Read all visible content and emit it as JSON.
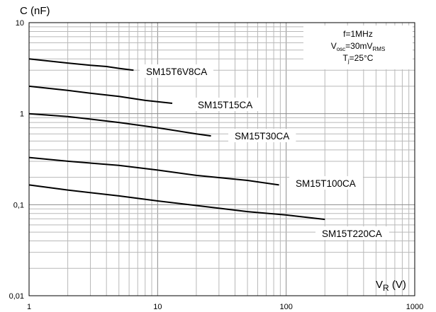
{
  "chart_data": {
    "type": "line",
    "xscale": "log",
    "yscale": "log",
    "xlim": [
      1,
      1000
    ],
    "ylim": [
      0.01,
      10
    ],
    "grid": true,
    "xlabel": "V_R (V)",
    "ylabel": "C (nF)",
    "x_tick_labels": [
      "1",
      "10",
      "100",
      "1000"
    ],
    "y_tick_labels": [
      "0,01",
      "0,1",
      "1",
      "10"
    ],
    "conditions": {
      "line1": "f=1MHz",
      "line2": "Vosc=30mVRMS",
      "line3": "Tj=25°C"
    },
    "series": [
      {
        "name": "SM15T6V8CA",
        "x": [
          1,
          2,
          3,
          4,
          5,
          6.5
        ],
        "y": [
          4.0,
          3.6,
          3.4,
          3.3,
          3.15,
          3.0
        ]
      },
      {
        "name": "SM15T15CA",
        "x": [
          1,
          2,
          3,
          5,
          8,
          13
        ],
        "y": [
          2.0,
          1.8,
          1.68,
          1.55,
          1.4,
          1.3
        ]
      },
      {
        "name": "SM15T30CA",
        "x": [
          1,
          2,
          3,
          5,
          10,
          20,
          26
        ],
        "y": [
          1.0,
          0.93,
          0.87,
          0.8,
          0.7,
          0.6,
          0.57
        ]
      },
      {
        "name": "SM15T100CA",
        "x": [
          1,
          2,
          5,
          10,
          20,
          50,
          88
        ],
        "y": [
          0.33,
          0.3,
          0.27,
          0.24,
          0.21,
          0.185,
          0.165
        ]
      },
      {
        "name": "SM15T220CA",
        "x": [
          1,
          2,
          5,
          10,
          20,
          50,
          100,
          200
        ],
        "y": [
          0.165,
          0.145,
          0.125,
          0.11,
          0.098,
          0.084,
          0.077,
          0.069
        ]
      }
    ]
  }
}
